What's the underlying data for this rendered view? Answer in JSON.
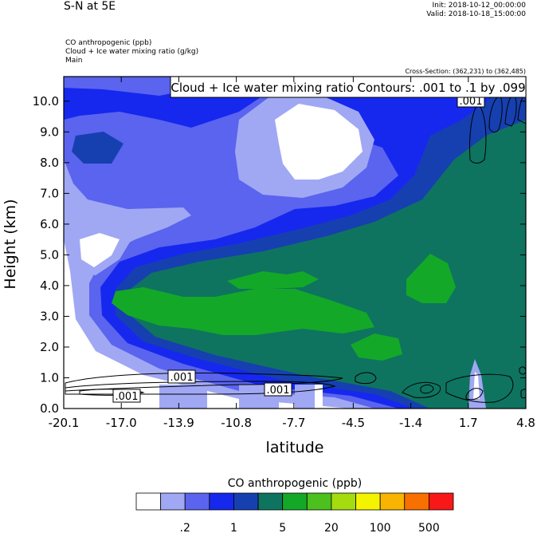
{
  "header": {
    "title": "S-N at 5E",
    "init": "Init: 2018-10-12_00:00:00",
    "valid": "Valid: 2018-10-18_15:00:00",
    "field_line_1": "CO anthropogenic   (ppb)",
    "field_line_2": "Cloud + Ice water mixing ratio   (g/kg)",
    "field_line_3": "Main",
    "cross_section": "Cross-Section: (362,231) to (362,485)"
  },
  "chart_data": {
    "type": "heatmap",
    "contour_label": "Cloud + Ice water mixing ratio Contours: .001 to .1 by .099",
    "contour_value_labels": [
      ".001",
      ".001",
      ".001",
      ".001"
    ],
    "xlabel": "latitude",
    "ylabel": "Height (km)",
    "xlim": [
      -20.1,
      4.8
    ],
    "ylim": [
      0.0,
      10.8
    ],
    "x_ticks": [
      -20.1,
      -17.0,
      -13.9,
      -10.8,
      -7.7,
      -4.5,
      -1.4,
      1.7,
      4.8
    ],
    "x_tick_labels": [
      "-20.1",
      "-17.0",
      "-13.9",
      "-10.8",
      "-7.7",
      "-4.5",
      "-1.4",
      "1.7",
      "4.8"
    ],
    "y_ticks": [
      0.0,
      1.0,
      2.0,
      3.0,
      4.0,
      5.0,
      6.0,
      7.0,
      8.0,
      9.0,
      10.0
    ],
    "y_tick_labels": [
      "0.0",
      "1.0",
      "2.0",
      "3.0",
      "4.0",
      "5.0",
      "6.0",
      "7.0",
      "8.0",
      "9.0",
      "10.0"
    ],
    "colorbar": {
      "title": "CO anthropogenic  (ppb)",
      "colors": [
        "#ffffff",
        "#a0a8f4",
        "#5a64ee",
        "#1628ee",
        "#1640b0",
        "#0e7460",
        "#14a828",
        "#4cc01c",
        "#a4dc10",
        "#f4f400",
        "#f8b400",
        "#f87000",
        "#f81818"
      ],
      "tick_labels": [
        ".2",
        "1",
        "5",
        "20",
        "100",
        "500"
      ]
    },
    "grid": false
  }
}
